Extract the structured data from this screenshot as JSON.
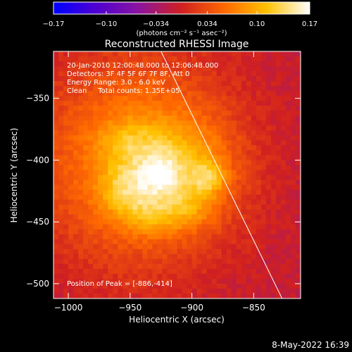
{
  "chart_data": {
    "type": "heatmap",
    "title": "Reconstructed RHESSI Image",
    "xlabel": "Heliocentric X (arcsec)",
    "ylabel": "Heliocentric Y (arcsec)",
    "xlim": [
      -1012,
      -812
    ],
    "ylim": [
      -512,
      -312
    ],
    "x_ticks": [
      -1000,
      -950,
      -900,
      -850
    ],
    "y_ticks": [
      -500,
      -450,
      -400,
      -350
    ],
    "x_tick_labels": [
      "−1000",
      "−950",
      "−900",
      "−850"
    ],
    "y_tick_labels": [
      "−500",
      "−450",
      "−400",
      "−350"
    ],
    "colorbar": {
      "ticks": [
        -0.17,
        -0.1,
        -0.034,
        0.034,
        0.1,
        0.17
      ],
      "tick_labels": [
        "−0.17",
        "−0.10",
        "−0.034",
        "0.034",
        "0.10",
        "0.17"
      ],
      "unit_label": "(photons cm⁻² s⁻¹ asec⁻²)",
      "colormap": [
        "#0000ff",
        "#5000d0",
        "#8a14a0",
        "#d02020",
        "#ff6a00",
        "#ffc000",
        "#ffffff"
      ]
    },
    "annotations": [
      "20-Jan-2010 12:00:48.000 to 12:06:48.000",
      "Detectors: 3F 4F 5F 6F 7F 8F, Att 0",
      "Energy Range: 3.0 - 6.0 keV",
      "Clean     Total counts: 1.35E+05"
    ],
    "peak_label": "Position of Peak = [-886,-414]",
    "peak": [
      -886,
      -414
    ],
    "limb_line": [
      [
        -925,
        -312
      ],
      [
        -827,
        -512
      ]
    ],
    "sources": [
      {
        "x": -945,
        "y": -400,
        "sx": 55,
        "sy": 58,
        "amp": 0.09
      },
      {
        "x": -910,
        "y": -408,
        "sx": 30,
        "sy": 28,
        "amp": 0.06
      },
      {
        "x": -926,
        "y": -412,
        "sx": 12,
        "sy": 12,
        "amp": 0.05
      },
      {
        "x": -955,
        "y": -425,
        "sx": 14,
        "sy": 16,
        "amp": 0.05
      },
      {
        "x": -886,
        "y": -414,
        "sx": 9,
        "sy": 9,
        "amp": 0.06
      },
      {
        "x": -950,
        "y": -385,
        "sx": 18,
        "sy": 12,
        "amp": 0.03
      },
      {
        "x": -935,
        "y": -445,
        "sx": 14,
        "sy": 12,
        "amp": 0.035
      },
      {
        "x": -905,
        "y": -440,
        "sx": 16,
        "sy": 12,
        "amp": 0.035
      }
    ]
  },
  "footer": {
    "date_time": "8-May-2022 16:39"
  }
}
